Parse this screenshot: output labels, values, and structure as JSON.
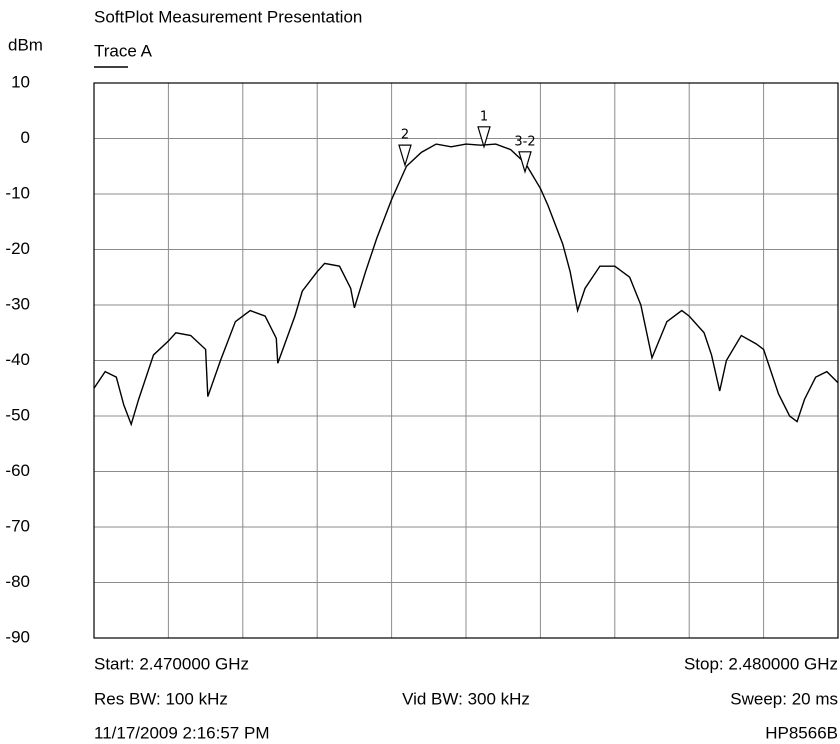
{
  "chart_data": {
    "type": "line",
    "title": "SoftPlot Measurement Presentation",
    "y_label": "dBm",
    "xlim": [
      2.47,
      2.48
    ],
    "xticks": [
      2.47,
      2.471,
      2.472,
      2.473,
      2.474,
      2.475,
      2.476,
      2.477,
      2.478,
      2.479,
      2.48
    ],
    "ylim": [
      -90,
      10
    ],
    "yticks": [
      10,
      0,
      -10,
      -20,
      -30,
      -40,
      -50,
      -60,
      -70,
      -80,
      -90
    ],
    "grid": true,
    "series": [
      {
        "name": "Trace A",
        "color": "#000000",
        "x": [
          2.47,
          2.47015,
          2.4703,
          2.4704,
          2.4705,
          2.4706,
          2.4708,
          2.471,
          2.4711,
          2.4713,
          2.4715,
          2.47153,
          2.4717,
          2.4719,
          2.472,
          2.4721,
          2.4723,
          2.47245,
          2.47247,
          2.4727,
          2.4728,
          2.473,
          2.4731,
          2.4733,
          2.47345,
          2.4735,
          2.47365,
          2.4738,
          2.474,
          2.4741,
          2.4742,
          2.4744,
          2.4746,
          2.4748,
          2.475,
          2.4752,
          2.4754,
          2.4756,
          2.4758,
          2.476,
          2.4761,
          2.4763,
          2.4764,
          2.4765,
          2.4766,
          2.4768,
          2.477,
          2.4772,
          2.47735,
          2.4775,
          2.4777,
          2.4779,
          2.478,
          2.4782,
          2.4783,
          2.47841,
          2.4785,
          2.4787,
          2.4789,
          2.479,
          2.4791,
          2.4792,
          2.47935,
          2.47945,
          2.47955,
          2.4797,
          2.47985,
          2.48
        ],
        "values": [
          -45,
          -42,
          -43,
          -48,
          -51.5,
          -47,
          -39,
          -36.5,
          -35,
          -35.5,
          -38,
          -46.5,
          -40,
          -33,
          -32,
          -31,
          -32,
          -36,
          -40.5,
          -32,
          -27.5,
          -24,
          -22.5,
          -23,
          -27,
          -30.5,
          -24,
          -18,
          -11,
          -8,
          -5,
          -2.5,
          -1,
          -1.5,
          -1,
          -1.2,
          -1,
          -2,
          -4.5,
          -9,
          -12,
          -19,
          -24,
          -31,
          -27,
          -23,
          -23,
          -25,
          -30,
          -39.5,
          -33,
          -31,
          -32,
          -35,
          -39,
          -45.5,
          -40,
          -35.5,
          -37,
          -38,
          -42,
          -46,
          -50,
          -51,
          -47,
          -43,
          -42,
          -44
        ]
      }
    ],
    "markers": [
      {
        "label": "2",
        "x": 2.47418,
        "y": -4.8
      },
      {
        "label": "1",
        "x": 2.475242,
        "y": -1.5
      },
      {
        "label": "3-2",
        "x": 2.475793,
        "y": -6
      }
    ],
    "footer": {
      "start": "Start: 2.470000 GHz",
      "stop": "Stop: 2.480000 GHz",
      "res_bw": "Res BW: 100 kHz",
      "vid_bw": "Vid BW: 300 kHz",
      "sweep": "Sweep: 20 ms",
      "timestamp": "11/17/2009 2:16:57 PM",
      "instrument": "HP8566B"
    }
  }
}
